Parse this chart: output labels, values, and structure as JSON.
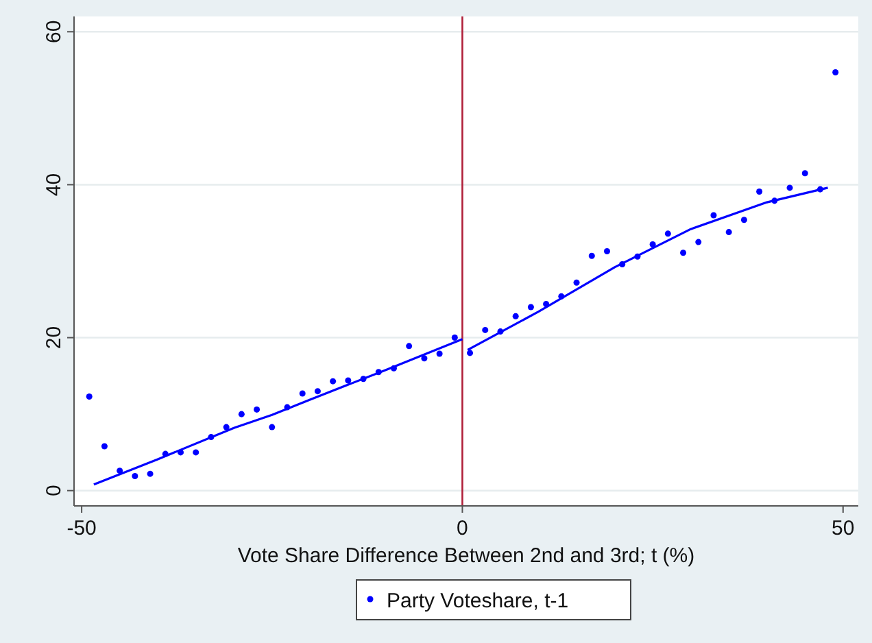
{
  "chart_data": {
    "type": "scatter",
    "xlabel": "Vote Share Difference Between 2nd and 3rd; t (%)",
    "xlim": [
      -51,
      52
    ],
    "ylim": [
      -2,
      62
    ],
    "xticks": [
      -50,
      0,
      50
    ],
    "yticks": [
      0,
      20,
      40,
      60
    ],
    "grid": "y",
    "legend": "bottom",
    "marker": "circle",
    "ref_lines": [
      {
        "axis": "x",
        "value": 0,
        "color": "#b0203a"
      }
    ],
    "series": [
      {
        "name": "Party Voteshare, t-1",
        "color": "#0000ff",
        "x": [
          -49,
          -47,
          -45,
          -43,
          -41,
          -39,
          -37,
          -35,
          -33,
          -31,
          -29,
          -27,
          -25,
          -23,
          -21,
          -19,
          -17,
          -15,
          -13,
          -11,
          -9,
          -7,
          -5,
          -3,
          -1,
          1,
          3,
          5,
          7,
          9,
          11,
          13,
          15,
          17,
          19,
          21,
          23,
          25,
          27,
          29,
          31,
          33,
          35,
          37,
          39,
          41,
          43,
          45,
          47,
          49
        ],
        "values": [
          12.3,
          5.8,
          2.6,
          1.9,
          2.2,
          4.8,
          5.0,
          5.0,
          7.0,
          8.3,
          10.0,
          10.6,
          8.3,
          10.9,
          12.7,
          13.0,
          14.3,
          14.4,
          14.6,
          15.5,
          16.0,
          18.9,
          17.3,
          17.9,
          20.0,
          18.0,
          21.0,
          20.8,
          22.8,
          24.0,
          24.4,
          25.4,
          27.2,
          30.7,
          31.3,
          29.6,
          30.6,
          32.2,
          33.6,
          31.1,
          32.5,
          36.0,
          33.8,
          35.4,
          39.1,
          37.9,
          39.6,
          41.5,
          39.4,
          54.7
        ]
      },
      {
        "color": "#0000ff",
        "type": "line",
        "marker": "none",
        "x": [
          -48.4,
          -40,
          -30,
          -25,
          -20,
          -10,
          0
        ],
        "values": [
          0.8,
          4.1,
          8.2,
          9.9,
          11.9,
          15.8,
          19.8
        ]
      },
      {
        "color": "#0000ff",
        "type": "line",
        "marker": "none",
        "x": [
          0.7,
          10,
          20,
          30,
          40,
          48
        ],
        "values": [
          18.4,
          23.4,
          29.2,
          34.2,
          37.7,
          39.6
        ]
      }
    ]
  }
}
